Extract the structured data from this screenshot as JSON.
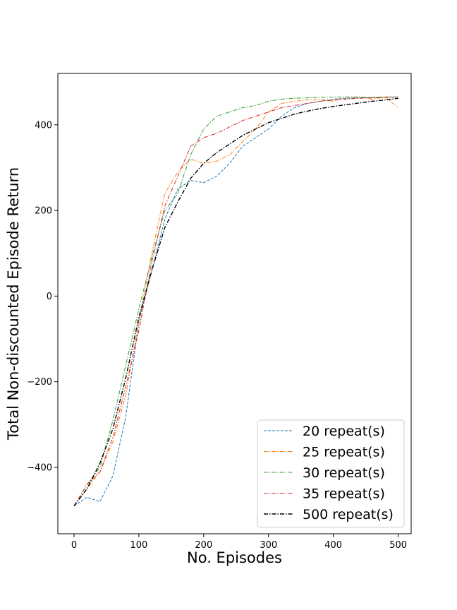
{
  "chart_data": {
    "type": "line",
    "title": "",
    "xlabel": "No. Episodes",
    "ylabel": "Total Non-discounted Episode Return",
    "xlim": [
      -25,
      520
    ],
    "ylim": [
      -555,
      520
    ],
    "xticks": [
      0,
      100,
      200,
      300,
      400,
      500
    ],
    "yticks": [
      -400,
      -200,
      0,
      200,
      400
    ],
    "xtick_labels": [
      "0",
      "100",
      "200",
      "300",
      "400",
      "500"
    ],
    "ytick_labels": [
      "−400",
      "−200",
      "0",
      "200",
      "400"
    ],
    "grid": false,
    "legend_position": "lower-right",
    "series": [
      {
        "name": "20 repeat(s)",
        "color": "#1f77b4",
        "dash": "dashed",
        "x": [
          0,
          20,
          40,
          60,
          80,
          100,
          120,
          140,
          160,
          180,
          200,
          220,
          240,
          260,
          280,
          300,
          320,
          340,
          360,
          380,
          400,
          420,
          440,
          460,
          480,
          500
        ],
        "y": [
          -490,
          -470,
          -480,
          -420,
          -280,
          -60,
          60,
          180,
          250,
          270,
          265,
          280,
          310,
          350,
          370,
          390,
          420,
          440,
          450,
          455,
          460,
          462,
          463,
          464,
          465,
          465
        ]
      },
      {
        "name": "25 repeat(s)",
        "color": "#ff7f0e",
        "dash": "dashdot",
        "x": [
          0,
          20,
          40,
          60,
          80,
          100,
          120,
          140,
          160,
          180,
          200,
          220,
          240,
          260,
          280,
          300,
          320,
          340,
          360,
          380,
          400,
          420,
          440,
          460,
          480,
          500
        ],
        "y": [
          -490,
          -450,
          -410,
          -340,
          -230,
          -60,
          100,
          240,
          290,
          320,
          310,
          315,
          330,
          360,
          390,
          430,
          450,
          455,
          458,
          460,
          455,
          465,
          465,
          460,
          465,
          440
        ]
      },
      {
        "name": "30 repeat(s)",
        "color": "#2ca02c",
        "dash": "dashdot",
        "x": [
          0,
          20,
          40,
          60,
          80,
          100,
          120,
          140,
          160,
          180,
          200,
          220,
          240,
          260,
          280,
          300,
          320,
          340,
          360,
          380,
          400,
          420,
          440,
          460,
          480,
          500
        ],
        "y": [
          -490,
          -440,
          -400,
          -290,
          -160,
          -30,
          90,
          200,
          240,
          330,
          390,
          420,
          430,
          440,
          445,
          455,
          460,
          462,
          463,
          464,
          465,
          465,
          465,
          464,
          465,
          465
        ]
      },
      {
        "name": "35 repeat(s)",
        "color": "#d62728",
        "dash": "dashdot",
        "x": [
          0,
          20,
          40,
          60,
          80,
          100,
          120,
          140,
          160,
          180,
          200,
          220,
          240,
          260,
          280,
          300,
          320,
          340,
          360,
          380,
          400,
          420,
          440,
          460,
          480,
          500
        ],
        "y": [
          -490,
          -440,
          -410,
          -330,
          -210,
          -80,
          80,
          210,
          280,
          350,
          370,
          380,
          395,
          410,
          420,
          430,
          440,
          445,
          450,
          455,
          458,
          460,
          462,
          463,
          464,
          465
        ]
      },
      {
        "name": "500 repeat(s)",
        "color": "#000000",
        "dash": "dashdot",
        "x": [
          0,
          20,
          40,
          60,
          80,
          100,
          120,
          140,
          160,
          180,
          200,
          220,
          240,
          260,
          280,
          300,
          320,
          340,
          360,
          380,
          400,
          420,
          440,
          460,
          480,
          500
        ],
        "y": [
          -490,
          -450,
          -390,
          -310,
          -190,
          -50,
          60,
          160,
          220,
          275,
          310,
          335,
          355,
          375,
          390,
          405,
          415,
          425,
          432,
          438,
          443,
          447,
          451,
          455,
          458,
          462
        ]
      }
    ]
  }
}
